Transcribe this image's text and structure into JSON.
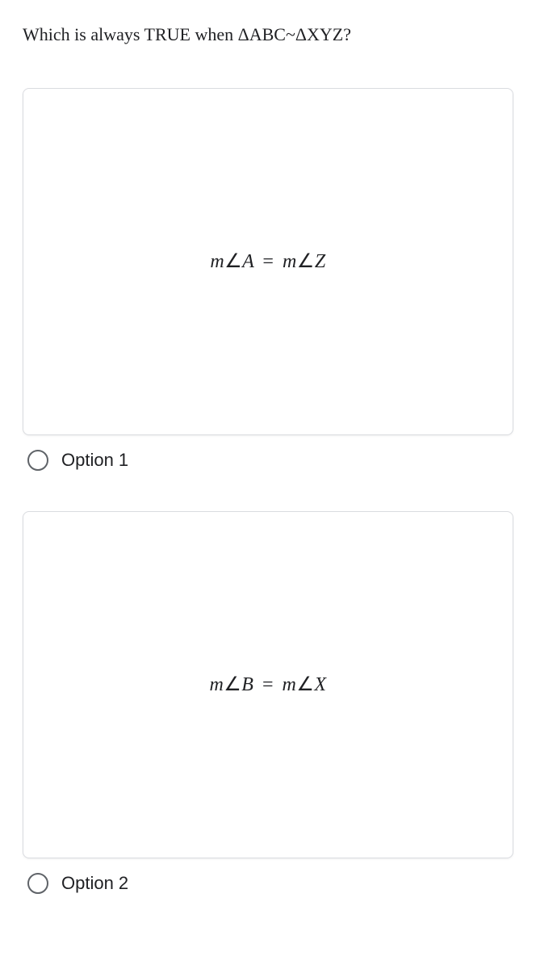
{
  "question": "Which is always TRUE when ΔABC~ΔXYZ?",
  "options": [
    {
      "label": "Option 1",
      "math": {
        "m1": "m",
        "ang1": "∠",
        "v1": "A",
        "eq": "=",
        "m2": "m",
        "ang2": "∠",
        "v2": "Z"
      }
    },
    {
      "label": "Option 2",
      "math": {
        "m1": "m",
        "ang1": "∠",
        "v1": "B",
        "eq": "=",
        "m2": "m",
        "ang2": "∠",
        "v2": "X"
      }
    }
  ],
  "style": {
    "card_border_color": "#dadce0",
    "radio_border_color": "#5f6368",
    "text_color": "#202124",
    "background_color": "#ffffff",
    "question_fontsize": 22,
    "math_fontsize": 24,
    "option_fontsize": 22
  }
}
